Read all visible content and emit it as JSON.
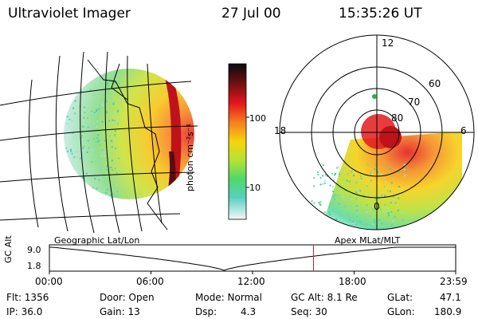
{
  "header": {
    "instrument": "Ultraviolet Imager",
    "date": "27 Jul 00",
    "time": "15:35:26 UT"
  },
  "colorbar": {
    "unit_label": "photon cm⁻²s⁻¹",
    "ticks": [
      "100",
      "10"
    ]
  },
  "polar": {
    "lat_labels": [
      "80",
      "70",
      "60"
    ],
    "mlt_labels": [
      "12",
      "18",
      "6",
      "0"
    ]
  },
  "panels": {
    "left_label": "Geographic Lat/Lon",
    "right_label": "Apex MLat/MLT"
  },
  "altitude_plot": {
    "ylabel": "GC Alt",
    "y_ticks": [
      "9.0",
      "1.8"
    ],
    "x_ticks": [
      "00:00",
      "06:00",
      "12:00",
      "18:00",
      "23:59"
    ],
    "current_time_fraction": 0.65
  },
  "status": {
    "flt": "Flt: 1356",
    "ip": "IP: 36.0",
    "door": "Door: Open",
    "gain": "Gain: 13",
    "mode": "Mode: Normal",
    "dsp_label": "Dsp:",
    "dsp_value": "4.3",
    "gc_alt": "GC Alt: 8.1 Re",
    "seq": "Seq: 30",
    "glat_label": "GLat:",
    "glat_value": "47.1",
    "glon_label": "GLon:",
    "glon_value": "180.9"
  }
}
